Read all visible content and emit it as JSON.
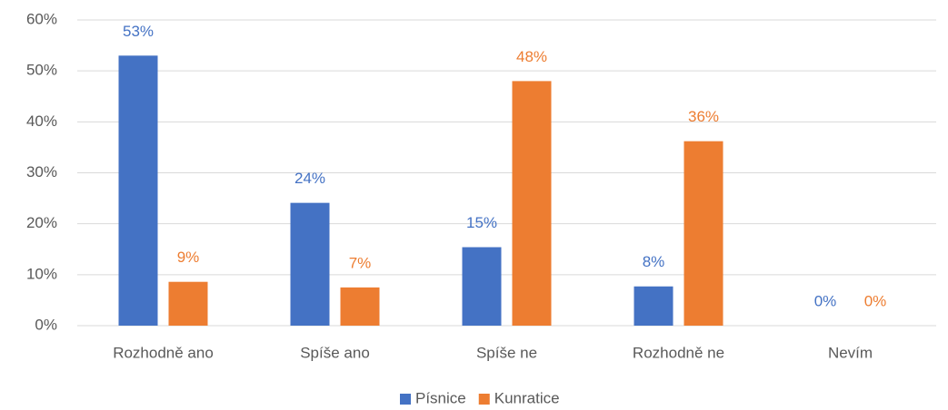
{
  "chart_data": {
    "type": "bar",
    "categories": [
      "Rozhodně ano",
      "Spíše ano",
      "Spíše ne",
      "Rozhodně ne",
      "Nevím"
    ],
    "series": [
      {
        "name": "Písnice",
        "color": "#4472c4",
        "values": [
          53.0,
          24.1,
          15.4,
          7.7,
          0
        ],
        "value_labels": [
          "53%",
          "24%",
          "15%",
          "8%",
          "0%"
        ]
      },
      {
        "name": "Kunratice",
        "color": "#ed7d31",
        "values": [
          8.6,
          7.5,
          48.0,
          36.2,
          0
        ],
        "value_labels": [
          "9%",
          "7%",
          "48%",
          "36%",
          "0%"
        ]
      }
    ],
    "ylim": [
      0,
      60
    ],
    "yticks": [
      {
        "value": 0,
        "label": "0%"
      },
      {
        "value": 10,
        "label": "10%"
      },
      {
        "value": 20,
        "label": "20%"
      },
      {
        "value": 30,
        "label": "30%"
      },
      {
        "value": 40,
        "label": "40%"
      },
      {
        "value": 50,
        "label": "50%"
      },
      {
        "value": 60,
        "label": "60%"
      }
    ],
    "grid": true,
    "legend": "bottom"
  }
}
